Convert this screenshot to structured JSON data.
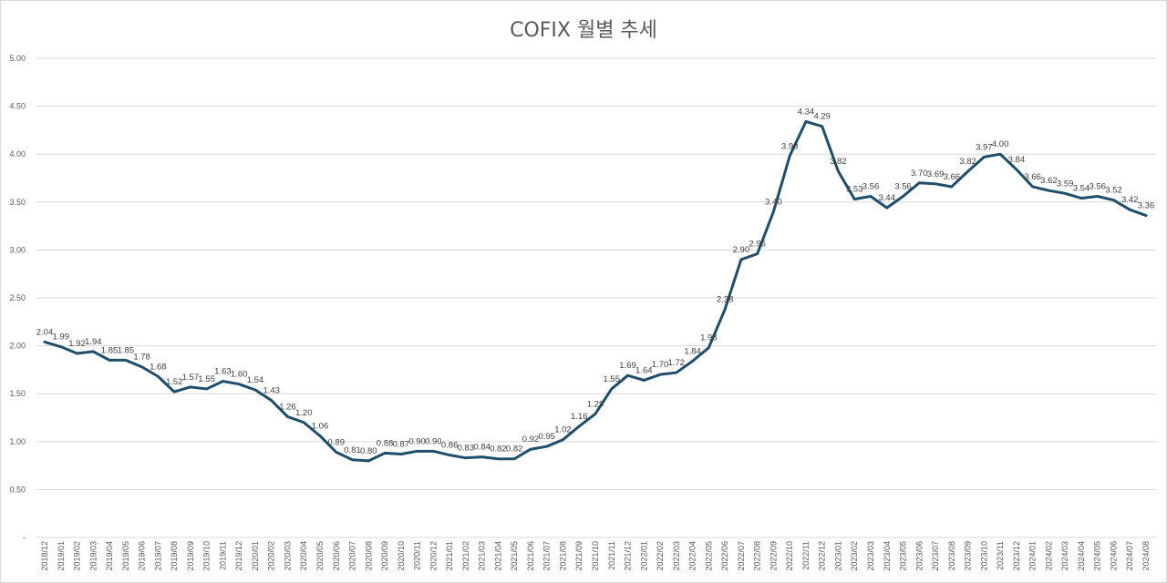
{
  "chart_data": {
    "type": "line",
    "title": "COFIX 월별 추세",
    "xlabel": "",
    "ylabel": "",
    "ylim": [
      0,
      5
    ],
    "y_ticks": [
      "-",
      "0.50",
      "1.00",
      "1.50",
      "2.00",
      "2.50",
      "3.00",
      "3.50",
      "4.00",
      "4.50",
      "5.00"
    ],
    "grid": true,
    "line_color": "#1f4e6b",
    "categories": [
      "2018/12",
      "2019/01",
      "2019/02",
      "2019/03",
      "2019/04",
      "2019/05",
      "2019/06",
      "2019/07",
      "2019/08",
      "2019/09",
      "2019/10",
      "2019/11",
      "2019/12",
      "2020/01",
      "2020/02",
      "2020/03",
      "2020/04",
      "2020/05",
      "2020/06",
      "2020/07",
      "2020/08",
      "2020/09",
      "2020/10",
      "2020/11",
      "2020/12",
      "2021/01",
      "2021/02",
      "2021/03",
      "2021/04",
      "2021/05",
      "2021/06",
      "2021/07",
      "2021/08",
      "2021/09",
      "2021/10",
      "2021/11",
      "2021/12",
      "2022/01",
      "2022/02",
      "2022/03",
      "2022/04",
      "2022/05",
      "2022/06",
      "2022/07",
      "2022/08",
      "2022/09",
      "2022/10",
      "2022/11",
      "2022/12",
      "2023/01",
      "2023/02",
      "2023/03",
      "2023/04",
      "2023/05",
      "2023/06",
      "2023/07",
      "2023/08",
      "2023/09",
      "2023/10",
      "2023/11",
      "2023/12",
      "2024/01",
      "2024/02",
      "2024/03",
      "2024/04",
      "2024/05",
      "2024/06",
      "2024/07",
      "2024/08"
    ],
    "series": [
      {
        "name": "COFIX",
        "values": [
          2.04,
          1.99,
          1.92,
          1.94,
          1.85,
          1.85,
          1.78,
          1.68,
          1.52,
          1.57,
          1.55,
          1.63,
          1.6,
          1.54,
          1.43,
          1.26,
          1.2,
          1.06,
          0.89,
          0.81,
          0.8,
          0.88,
          0.87,
          0.9,
          0.9,
          0.86,
          0.83,
          0.84,
          0.82,
          0.82,
          0.92,
          0.95,
          1.02,
          1.16,
          1.29,
          1.55,
          1.69,
          1.64,
          1.7,
          1.72,
          1.84,
          1.98,
          2.38,
          2.9,
          2.96,
          3.4,
          3.98,
          4.34,
          4.29,
          3.82,
          3.53,
          3.56,
          3.44,
          3.56,
          3.7,
          3.69,
          3.66,
          3.82,
          3.97,
          4.0,
          3.84,
          3.66,
          3.62,
          3.59,
          3.54,
          3.56,
          3.52,
          3.42,
          3.36
        ],
        "labels": [
          "2.04",
          "1.99",
          "1.92",
          "1.94",
          "1.85",
          "1.85",
          "1.78",
          "1.68",
          "1.52",
          "1.57",
          "1.55",
          "1.63",
          "1.60",
          "1.54",
          "1.43",
          "1.26",
          "1.20",
          "1.06",
          "0.89",
          "0.81",
          "0.80",
          "0.88",
          "0.87",
          "0.90",
          "0.90",
          "0.86",
          "0.83",
          "0.84",
          "0.82",
          "0.82",
          "0.92",
          "0.95",
          "1.02",
          "1.16",
          "1.29",
          "1.55",
          "1.69",
          "1.64",
          "1.70",
          "1.72",
          "1.84",
          "1.98",
          "2.38",
          "2.90",
          "2.96",
          "3.40",
          "3.98",
          "4.34",
          "4.29",
          "3.82",
          "3.53",
          "3.56",
          "3.44",
          "3.56",
          "3.70",
          "3.69",
          "3.66",
          "3.82",
          "3.97",
          "4.00",
          "3.84",
          "3.66",
          "3.62",
          "3.59",
          "3.54",
          "3.56",
          "3.52",
          "3.42",
          "3.36"
        ]
      }
    ]
  }
}
